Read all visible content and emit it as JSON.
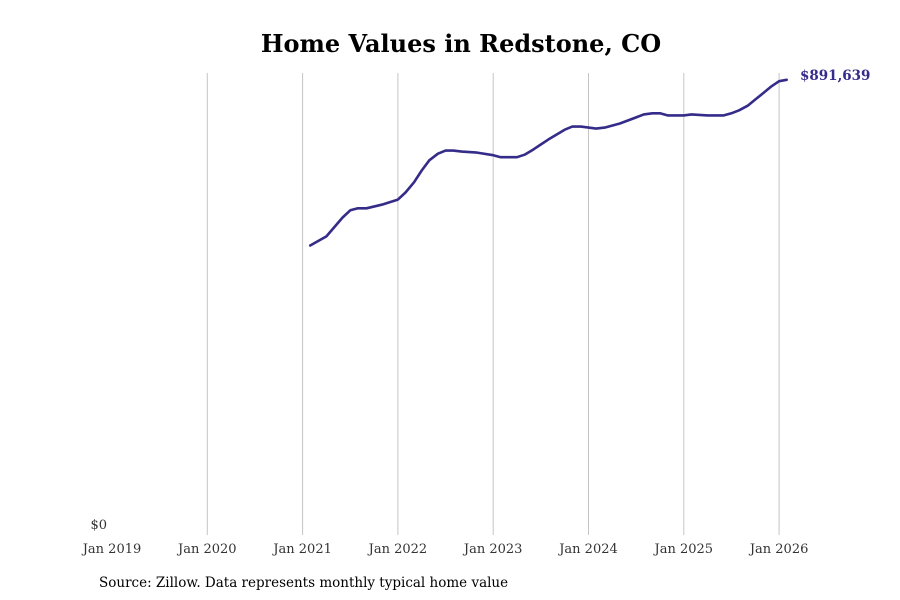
{
  "chart_data": {
    "type": "line",
    "title": "Home Values in Redstone, CO",
    "source": "Source: Zillow. Data represents monthly typical home value",
    "xlabel": "",
    "ylabel": "",
    "xlim": [
      2019.0,
      2026.2
    ],
    "ylim": [
      0,
      905000
    ],
    "grid": "vertical",
    "y_tick_labels": [
      {
        "value": 0,
        "label": "$0"
      }
    ],
    "x_ticks": [
      {
        "value": 2019,
        "label": "Jan 2019"
      },
      {
        "value": 2020,
        "label": "Jan 2020"
      },
      {
        "value": 2021,
        "label": "Jan 2021"
      },
      {
        "value": 2022,
        "label": "Jan 2022"
      },
      {
        "value": 2023,
        "label": "Jan 2023"
      },
      {
        "value": 2024,
        "label": "Jan 2024"
      },
      {
        "value": 2025,
        "label": "Jan 2025"
      },
      {
        "value": 2026,
        "label": "Jan 2026"
      }
    ],
    "end_label": "$891,639",
    "line_color": "#352c8a",
    "series": [
      {
        "name": "Typical home value",
        "x": [
          2021.08,
          2021.25,
          2021.42,
          2021.5,
          2021.58,
          2021.67,
          2021.83,
          2022.0,
          2022.08,
          2022.17,
          2022.25,
          2022.33,
          2022.42,
          2022.5,
          2022.58,
          2022.67,
          2022.83,
          2023.0,
          2023.08,
          2023.17,
          2023.25,
          2023.33,
          2023.42,
          2023.5,
          2023.58,
          2023.75,
          2023.83,
          2023.92,
          2024.0,
          2024.08,
          2024.17,
          2024.33,
          2024.5,
          2024.58,
          2024.67,
          2024.75,
          2024.83,
          2025.0,
          2025.08,
          2025.25,
          2025.42,
          2025.5,
          2025.58,
          2025.67,
          2025.75,
          2025.83,
          2025.92,
          2026.0,
          2026.08
        ],
        "values": [
          567000,
          585000,
          622000,
          636000,
          640000,
          640000,
          647000,
          657000,
          671000,
          691000,
          714000,
          734000,
          747000,
          753000,
          753000,
          751000,
          749000,
          744000,
          740000,
          740000,
          740000,
          745000,
          755000,
          765000,
          775000,
          794000,
          800000,
          800000,
          798000,
          796000,
          798000,
          806000,
          818000,
          824000,
          826000,
          826000,
          822000,
          822000,
          824000,
          822000,
          822000,
          826000,
          832000,
          841000,
          853000,
          865000,
          879000,
          889000,
          891639
        ]
      }
    ]
  }
}
